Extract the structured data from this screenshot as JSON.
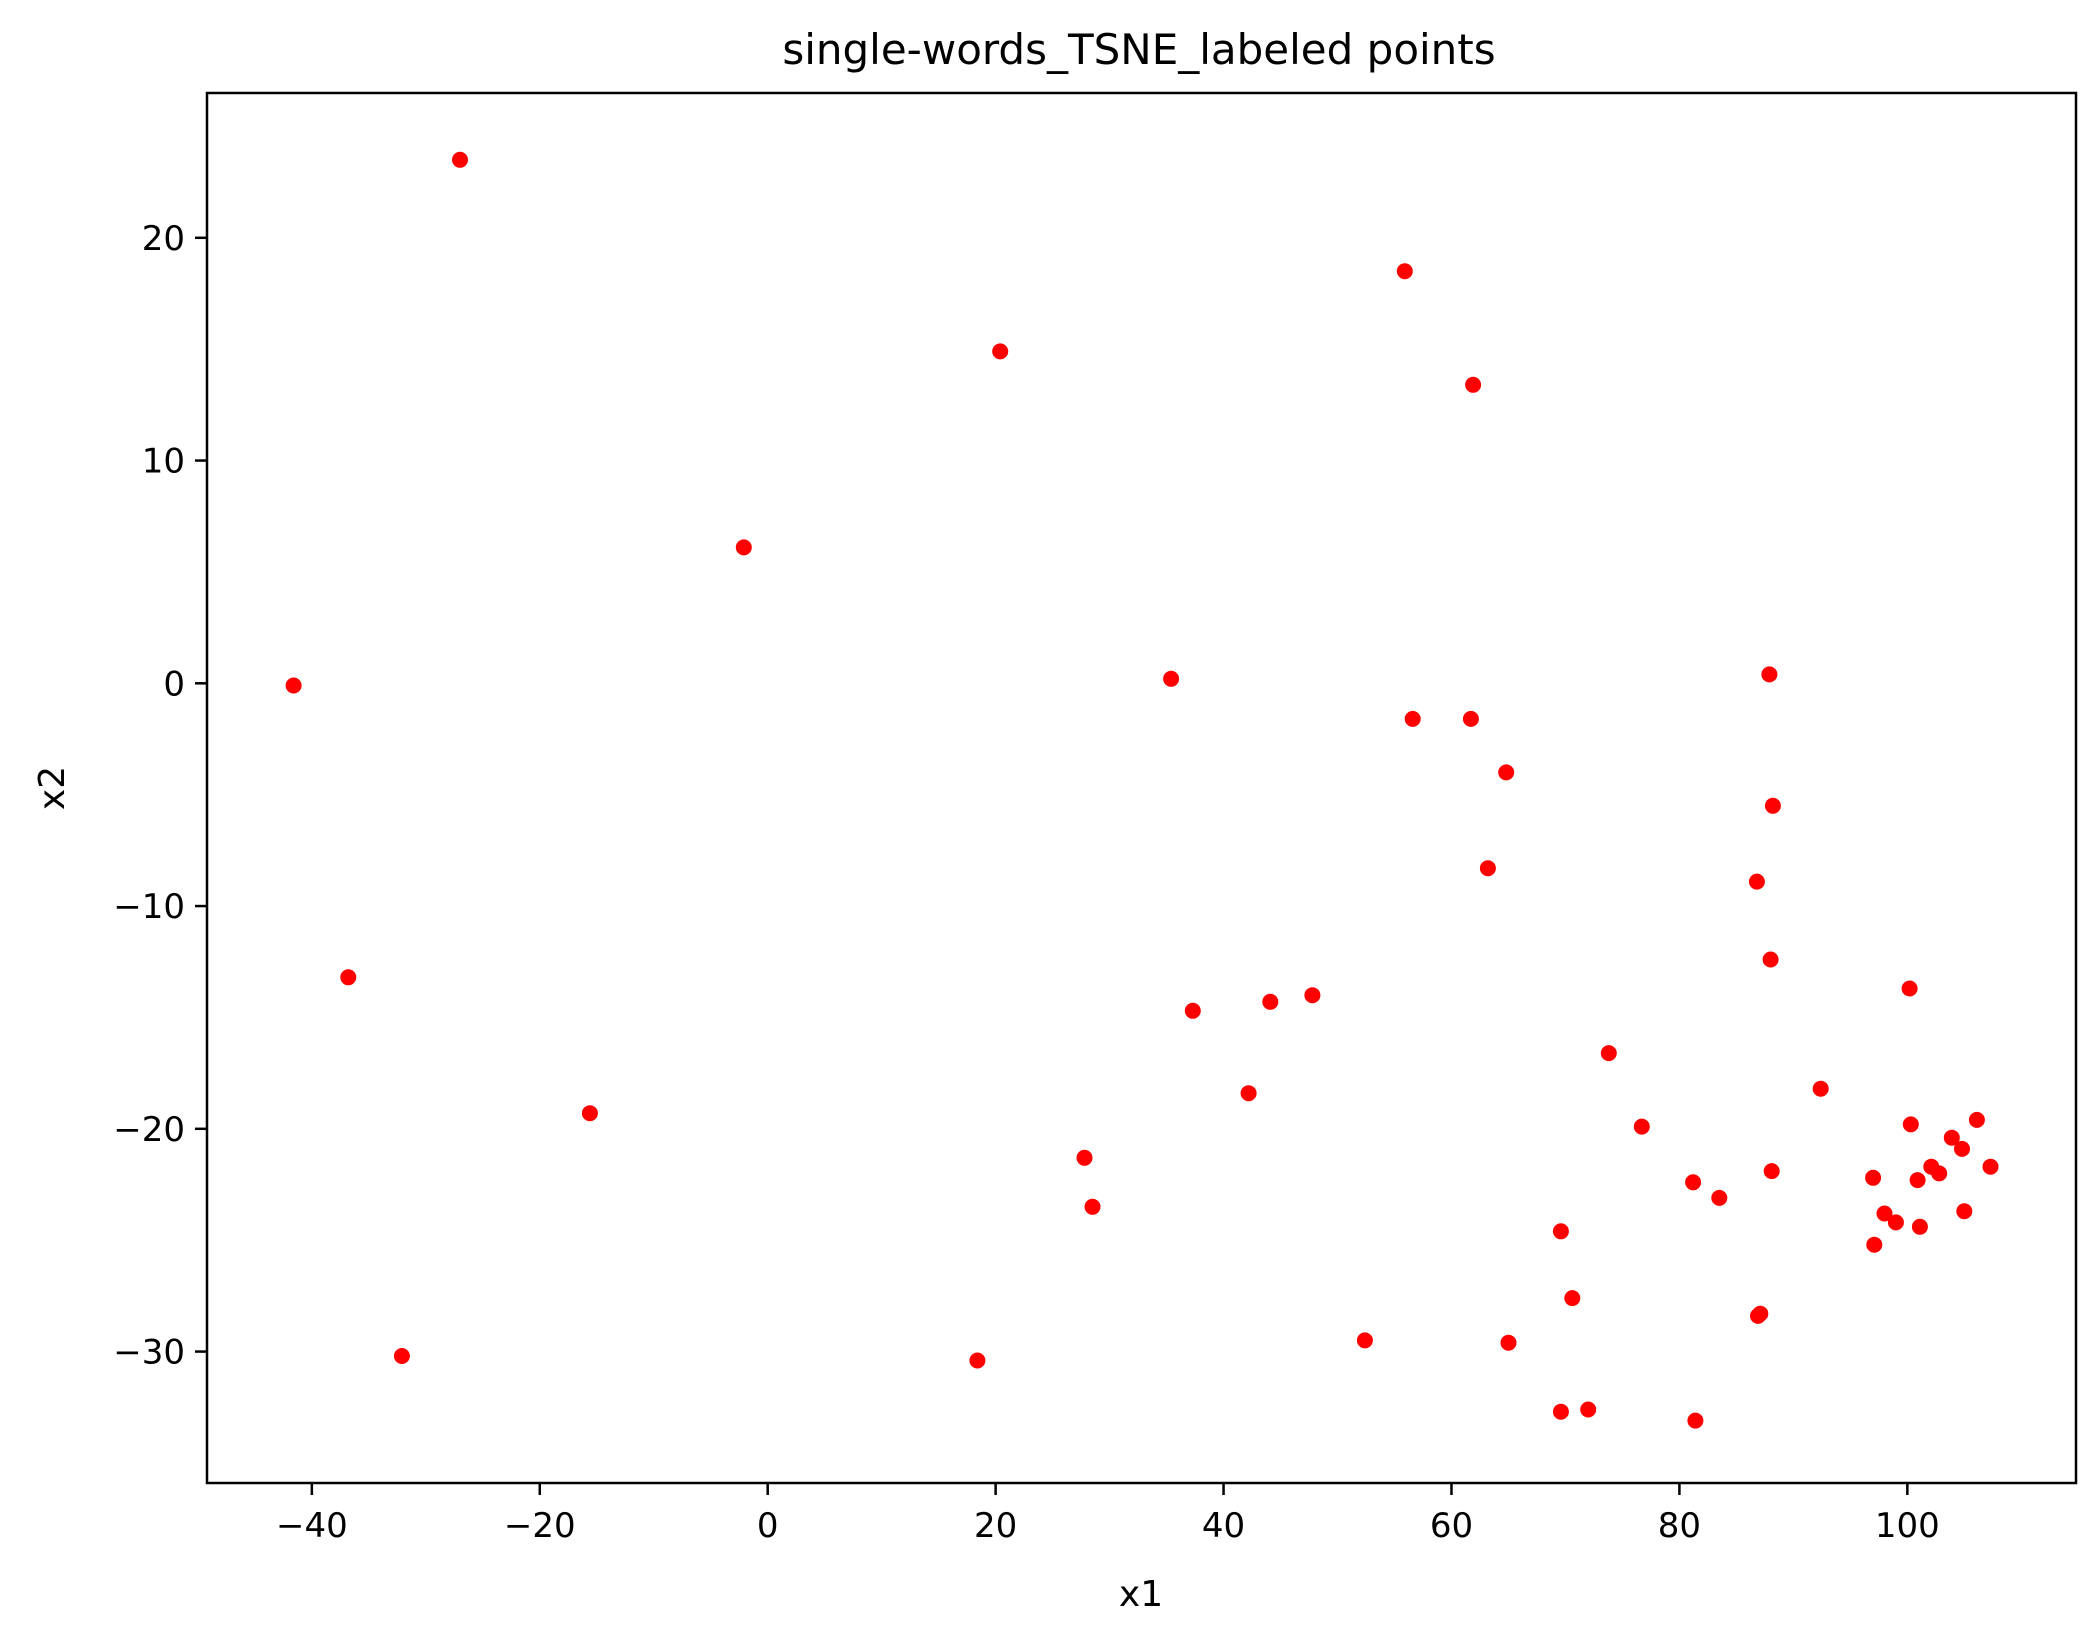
{
  "chart_data": {
    "type": "scatter",
    "title": "single-words_TSNE_labeled points",
    "xlabel": "x1",
    "ylabel": "x2",
    "xlim": [
      -49.2,
      114.8
    ],
    "ylim": [
      -35.9,
      26.5
    ],
    "xticks": [
      -40,
      -20,
      0,
      20,
      40,
      60,
      80,
      100
    ],
    "yticks": [
      20,
      10,
      0,
      -10,
      -20,
      -30
    ],
    "grid": false,
    "legend": "none",
    "marker_color": "#ff0000",
    "points": [
      {
        "x": -41.6,
        "y": -0.1
      },
      {
        "x": -27.0,
        "y": 23.5
      },
      {
        "x": -36.8,
        "y": -13.2
      },
      {
        "x": -32.1,
        "y": -30.2
      },
      {
        "x": -15.6,
        "y": -19.3
      },
      {
        "x": -2.1,
        "y": 6.1
      },
      {
        "x": 20.4,
        "y": 14.9
      },
      {
        "x": 18.4,
        "y": -30.4
      },
      {
        "x": 27.8,
        "y": -21.3
      },
      {
        "x": 28.5,
        "y": -23.5
      },
      {
        "x": 35.4,
        "y": 0.2
      },
      {
        "x": 37.3,
        "y": -14.7
      },
      {
        "x": 42.2,
        "y": -18.4
      },
      {
        "x": 44.1,
        "y": -14.3
      },
      {
        "x": 47.8,
        "y": -14.0
      },
      {
        "x": 52.4,
        "y": -29.5
      },
      {
        "x": 55.9,
        "y": 18.5
      },
      {
        "x": 56.6,
        "y": -1.6
      },
      {
        "x": 61.7,
        "y": -1.6
      },
      {
        "x": 61.9,
        "y": 13.4
      },
      {
        "x": 63.2,
        "y": -8.3
      },
      {
        "x": 64.8,
        "y": -4.0
      },
      {
        "x": 65.0,
        "y": -29.6
      },
      {
        "x": 69.6,
        "y": -24.6
      },
      {
        "x": 69.6,
        "y": -32.7
      },
      {
        "x": 70.6,
        "y": -27.6
      },
      {
        "x": 72.0,
        "y": -32.6
      },
      {
        "x": 73.8,
        "y": -16.6
      },
      {
        "x": 76.7,
        "y": -19.9
      },
      {
        "x": 81.2,
        "y": -22.4
      },
      {
        "x": 81.4,
        "y": -33.1
      },
      {
        "x": 83.5,
        "y": -23.1
      },
      {
        "x": 86.8,
        "y": -8.9
      },
      {
        "x": 86.9,
        "y": -28.4
      },
      {
        "x": 87.1,
        "y": -28.3
      },
      {
        "x": 87.9,
        "y": 0.4
      },
      {
        "x": 88.0,
        "y": -12.4
      },
      {
        "x": 88.1,
        "y": -21.9
      },
      {
        "x": 88.2,
        "y": -5.5
      },
      {
        "x": 92.4,
        "y": -18.2
      },
      {
        "x": 97.0,
        "y": -22.2
      },
      {
        "x": 97.1,
        "y": -25.2
      },
      {
        "x": 98.0,
        "y": -23.8
      },
      {
        "x": 99.0,
        "y": -24.2
      },
      {
        "x": 100.2,
        "y": -13.7
      },
      {
        "x": 100.3,
        "y": -19.8
      },
      {
        "x": 100.9,
        "y": -22.3
      },
      {
        "x": 101.1,
        "y": -24.4
      },
      {
        "x": 102.1,
        "y": -21.7
      },
      {
        "x": 102.8,
        "y": -22.0
      },
      {
        "x": 103.9,
        "y": -20.4
      },
      {
        "x": 104.8,
        "y": -20.9
      },
      {
        "x": 105.0,
        "y": -23.7
      },
      {
        "x": 106.1,
        "y": -19.6
      },
      {
        "x": 107.3,
        "y": -21.7
      }
    ]
  }
}
